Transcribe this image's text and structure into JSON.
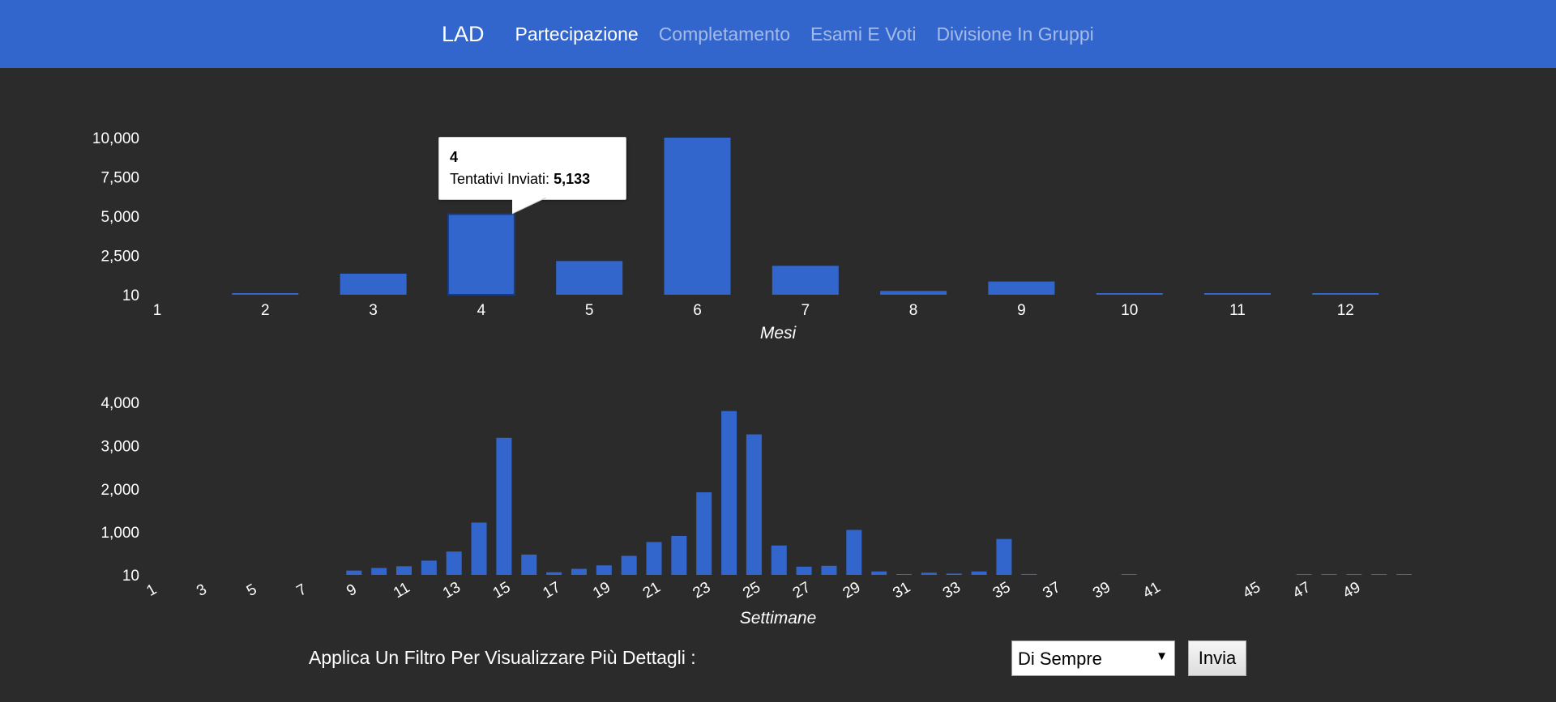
{
  "nav": {
    "brand": "LAD",
    "links": [
      {
        "label": "Partecipazione",
        "active": true
      },
      {
        "label": "Completamento",
        "active": false
      },
      {
        "label": "Esami E Voti",
        "active": false
      },
      {
        "label": "Divisione In Gruppi",
        "active": false
      }
    ]
  },
  "colors": {
    "nav_bg": "#3366cc",
    "bar": "#3366cc",
    "background": "#2b2b2b"
  },
  "chart_data": [
    {
      "type": "bar",
      "xlabel": "Mesi",
      "ylabel": "",
      "yticks": [
        "10",
        "2,500",
        "5,000",
        "7,500",
        "10,000"
      ],
      "ytick_values": [
        10,
        2500,
        5000,
        7500,
        10000
      ],
      "ylim": [
        10,
        10000
      ],
      "series_name": "Tentativi Inviati",
      "categories": [
        "1",
        "2",
        "3",
        "4",
        "5",
        "6",
        "7",
        "8",
        "9",
        "10",
        "11",
        "12"
      ],
      "values": [
        0,
        60,
        1350,
        5133,
        2150,
        10000,
        1850,
        250,
        850,
        40,
        40,
        40
      ],
      "tooltip": {
        "title": "4",
        "label": "Tentativi Inviati: ",
        "value": "5,133"
      }
    },
    {
      "type": "bar",
      "xlabel": "Settimane",
      "ylabel": "",
      "yticks": [
        "10",
        "1,000",
        "2,000",
        "3,000",
        "4,000"
      ],
      "ytick_values": [
        10,
        1000,
        2000,
        3000,
        4000
      ],
      "ylim": [
        10,
        4000
      ],
      "xtick_labels": [
        "1",
        "3",
        "5",
        "7",
        "9",
        "11",
        "13",
        "15",
        "17",
        "19",
        "21",
        "23",
        "25",
        "27",
        "29",
        "31",
        "33",
        "35",
        "37",
        "39",
        "41",
        "45",
        "47",
        "49"
      ],
      "categories": [
        1,
        2,
        3,
        4,
        5,
        6,
        7,
        8,
        9,
        10,
        11,
        12,
        13,
        14,
        15,
        16,
        17,
        18,
        19,
        20,
        21,
        22,
        23,
        24,
        25,
        26,
        27,
        28,
        29,
        30,
        31,
        32,
        33,
        34,
        35,
        36,
        37,
        38,
        39,
        40,
        41,
        42,
        43,
        44,
        45,
        46,
        47,
        48,
        49,
        50,
        51
      ],
      "values": [
        0,
        0,
        0,
        0,
        0,
        0,
        0,
        0,
        110,
        170,
        210,
        340,
        550,
        1220,
        3180,
        480,
        70,
        150,
        230,
        450,
        770,
        910,
        1920,
        3800,
        3260,
        690,
        200,
        220,
        1050,
        90,
        20,
        60,
        40,
        90,
        840,
        30,
        0,
        0,
        0,
        15,
        0,
        0,
        0,
        0,
        0,
        0,
        8,
        15,
        25,
        10,
        5
      ]
    }
  ],
  "filter": {
    "label": "Applica Un Filtro Per Visualizzare Più Dettagli :",
    "selected": "Di Sempre",
    "button": "Invia"
  }
}
